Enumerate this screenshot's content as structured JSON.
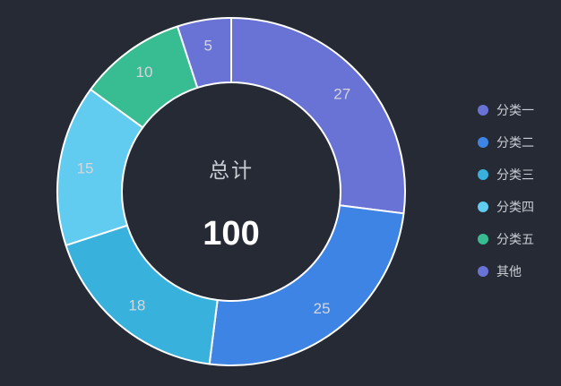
{
  "background_color": "#262A34",
  "center": {
    "label": "总计",
    "value": "100"
  },
  "legend": {
    "position": "right",
    "items": [
      {
        "label": "分类一",
        "color": "#6972D5"
      },
      {
        "label": "分类二",
        "color": "#3E84E5"
      },
      {
        "label": "分类三",
        "color": "#38B2DD"
      },
      {
        "label": "分类四",
        "color": "#61CBF0"
      },
      {
        "label": "分类五",
        "color": "#38BD92"
      },
      {
        "label": "其他",
        "color": "#6972D5"
      }
    ]
  },
  "chart_data": {
    "type": "pie",
    "subtype": "donut",
    "title": "总计",
    "center_label": "总计",
    "center_value": 100,
    "total": 100,
    "start_angle_deg": 0,
    "direction": "clockwise",
    "inner_radius_ratio": 0.63,
    "border_color": "#FFFFFF",
    "border_width": 2,
    "label_color": "#D5D7DC",
    "legend_position": "right",
    "categories": [
      "分类一",
      "分类二",
      "分类三",
      "分类四",
      "分类五",
      "其他"
    ],
    "values": [
      27,
      25,
      18,
      15,
      10,
      5
    ],
    "slices": [
      {
        "name": "分类一",
        "value": 27,
        "color": "#6972D5"
      },
      {
        "name": "分类二",
        "value": 25,
        "color": "#3E84E5"
      },
      {
        "name": "分类三",
        "value": 18,
        "color": "#38B2DD"
      },
      {
        "name": "分类四",
        "value": 15,
        "color": "#61CBF0"
      },
      {
        "name": "分类五",
        "value": 10,
        "color": "#38BD92"
      },
      {
        "name": "其他",
        "value": 5,
        "color": "#6972D5"
      }
    ]
  }
}
